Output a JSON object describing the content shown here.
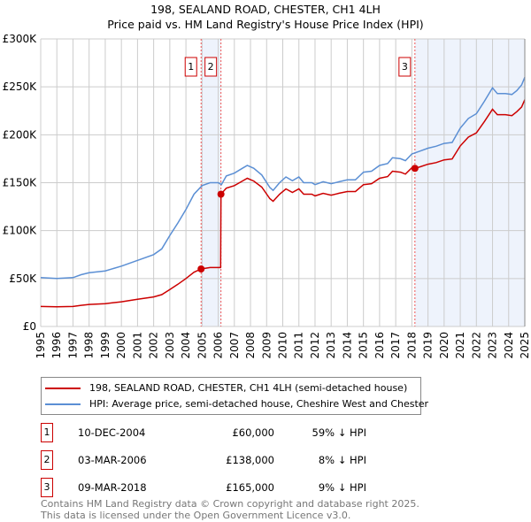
{
  "chart_data": {
    "type": "line",
    "title": "198, SEALAND ROAD, CHESTER, CH1 4LH",
    "subtitle": "Price paid vs. HM Land Registry's House Price Index (HPI)",
    "xlim": [
      1995,
      2025
    ],
    "ylim": [
      0,
      300000
    ],
    "y_ticks": [
      {
        "v": 0,
        "label": "£0"
      },
      {
        "v": 50000,
        "label": "£50K"
      },
      {
        "v": 100000,
        "label": "£100K"
      },
      {
        "v": 150000,
        "label": "£150K"
      },
      {
        "v": 200000,
        "label": "£200K"
      },
      {
        "v": 250000,
        "label": "£250K"
      },
      {
        "v": 300000,
        "label": "£300K"
      }
    ],
    "x_ticks": [
      "1995",
      "1996",
      "1997",
      "1998",
      "1999",
      "2000",
      "2001",
      "2002",
      "2003",
      "2004",
      "2005",
      "2006",
      "2007",
      "2008",
      "2009",
      "2010",
      "2011",
      "2012",
      "2013",
      "2014",
      "2015",
      "2016",
      "2017",
      "2018",
      "2019",
      "2020",
      "2021",
      "2022",
      "2023",
      "2024",
      "2025"
    ],
    "grid": true,
    "series": [
      {
        "name": "198, SEALAND ROAD, CHESTER, CH1 4LH (semi-detached house)",
        "color": "#cc0000",
        "x": [
          1995,
          1996,
          1997,
          1997.5,
          1998,
          1999,
          2000,
          2001,
          2002,
          2002.5,
          2003,
          2003.5,
          2004,
          2004.5,
          2004.94,
          2005.5,
          2006.15,
          2006.17,
          2006.5,
          2007,
          2007.5,
          2007.8,
          2008.2,
          2008.7,
          2009.2,
          2009.4,
          2009.8,
          2010.2,
          2010.6,
          2011,
          2011.3,
          2011.8,
          2012,
          2012.5,
          2013,
          2013.5,
          2014,
          2014.5,
          2015,
          2015.5,
          2016,
          2016.5,
          2016.8,
          2017.3,
          2017.6,
          2018,
          2018.19,
          2018.5,
          2019,
          2019.5,
          2020,
          2020.5,
          2021,
          2021.5,
          2022,
          2022.5,
          2023,
          2023.3,
          2023.8,
          2024.2,
          2024.5,
          2024.8,
          2025
        ],
        "y": [
          20900,
          20500,
          20900,
          22100,
          23000,
          23800,
          25800,
          28300,
          30800,
          33200,
          38500,
          44000,
          50000,
          56600,
          60000,
          61500,
          61500,
          138000,
          144400,
          147000,
          151800,
          154600,
          151800,
          145400,
          133400,
          130600,
          138000,
          143500,
          139800,
          143500,
          138000,
          138000,
          136200,
          138900,
          137000,
          139000,
          140800,
          140800,
          148000,
          149000,
          154600,
          156400,
          162000,
          161000,
          159000,
          165600,
          165000,
          166500,
          169300,
          171000,
          173800,
          174700,
          188400,
          197500,
          202000,
          213900,
          226600,
          221000,
          221000,
          220000,
          224000,
          229000,
          236600
        ]
      },
      {
        "name": "HPI: Average price, semi-detached house, Cheshire West and Chester",
        "color": "#5b8fd4",
        "x": [
          1995,
          1996,
          1997,
          1997.5,
          1998,
          1999,
          2000,
          2001,
          2002,
          2002.5,
          2003,
          2003.5,
          2004,
          2004.5,
          2005,
          2005.5,
          2006,
          2006.2,
          2006.5,
          2007,
          2007.5,
          2007.8,
          2008.2,
          2008.7,
          2009.2,
          2009.4,
          2009.8,
          2010.2,
          2010.6,
          2011,
          2011.3,
          2011.8,
          2012,
          2012.5,
          2013,
          2013.5,
          2014,
          2014.5,
          2015,
          2015.5,
          2016,
          2016.5,
          2016.8,
          2017.3,
          2017.6,
          2018,
          2018.5,
          2019,
          2019.5,
          2020,
          2020.5,
          2021,
          2021.5,
          2022,
          2022.5,
          2023,
          2023.3,
          2023.8,
          2024.2,
          2024.5,
          2024.8,
          2025
        ],
        "y": [
          51000,
          50000,
          51000,
          54000,
          56000,
          58000,
          63000,
          69000,
          75000,
          81000,
          95000,
          108000,
          122000,
          138000,
          147000,
          150000,
          150000,
          148000,
          157000,
          160000,
          165000,
          168000,
          165000,
          158000,
          145000,
          142000,
          150000,
          156000,
          152000,
          156000,
          150000,
          150000,
          148000,
          151000,
          149000,
          151000,
          153000,
          153000,
          161000,
          162000,
          168000,
          170000,
          176000,
          175000,
          173000,
          180000,
          183000,
          186000,
          188000,
          191000,
          192000,
          207000,
          217000,
          222000,
          235000,
          249000,
          243000,
          243000,
          242000,
          246000,
          252000,
          260000
        ]
      }
    ],
    "sales": [
      {
        "n": "1",
        "x": 2004.94,
        "y": 60000,
        "date": "10-DEC-2004",
        "price": "£60,000",
        "hpi": "59% ↓ HPI"
      },
      {
        "n": "2",
        "x": 2006.17,
        "y": 138000,
        "date": "03-MAR-2006",
        "price": "£138,000",
        "hpi": "8% ↓ HPI"
      },
      {
        "n": "3",
        "x": 2018.19,
        "y": 165000,
        "date": "09-MAR-2018",
        "price": "£165,000",
        "hpi": "9% ↓ HPI"
      }
    ],
    "shaded": [
      [
        2004.94,
        2006.17
      ],
      [
        2018.19,
        2025
      ]
    ],
    "legend_position": "bottom"
  },
  "footer": {
    "line1": "Contains HM Land Registry data © Crown copyright and database right 2025.",
    "line2": "This data is licensed under the Open Government Licence v3.0."
  }
}
